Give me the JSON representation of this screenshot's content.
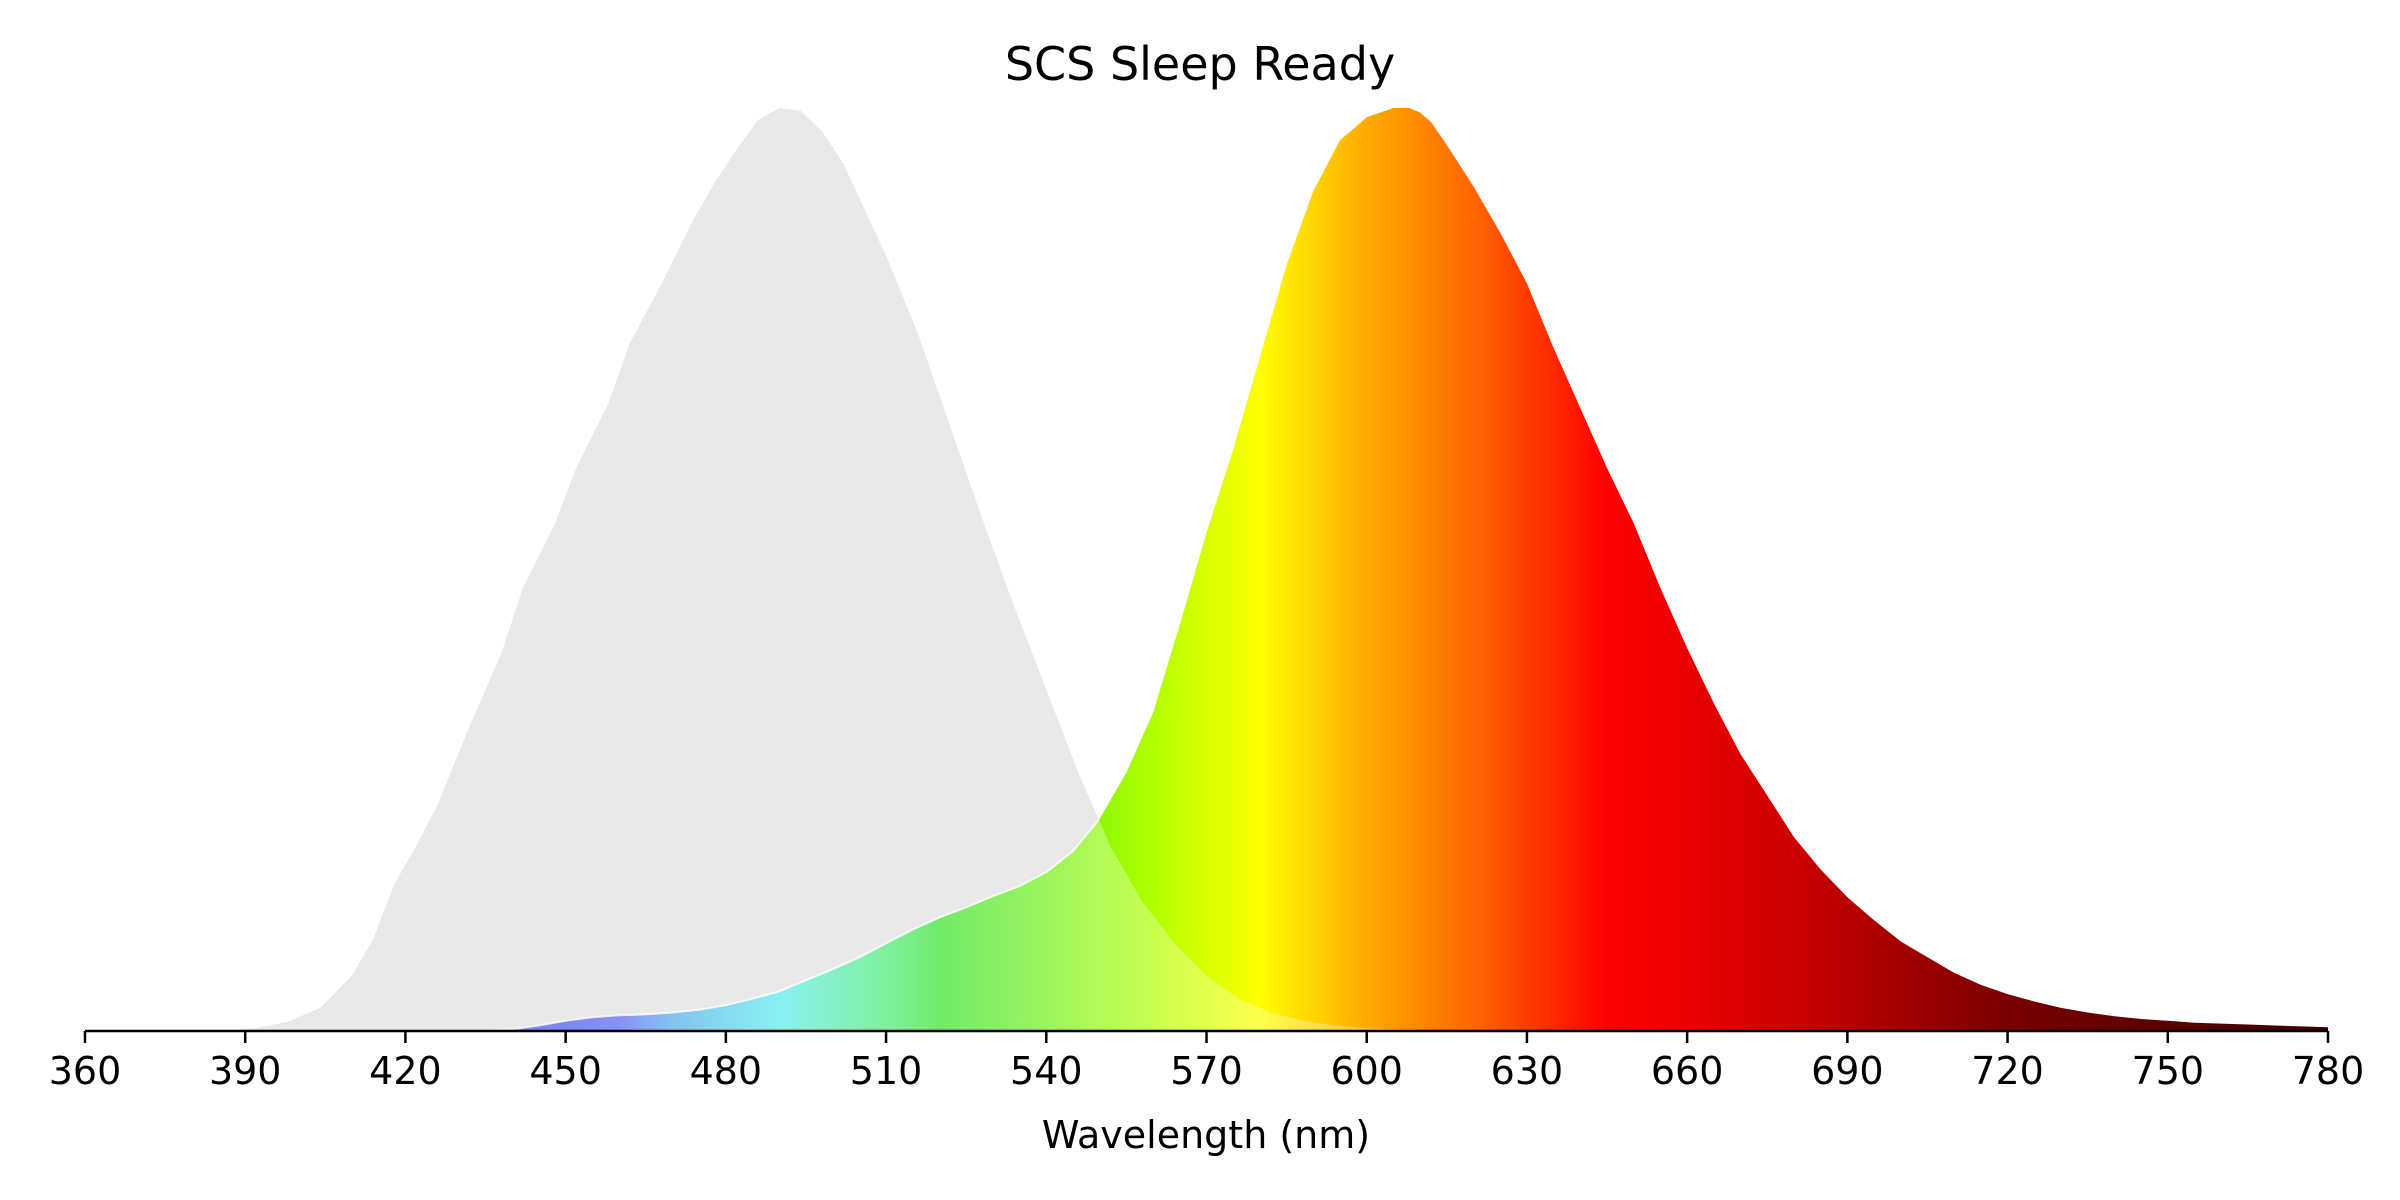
{
  "chart_data": {
    "type": "area",
    "title": "SCS Sleep Ready",
    "xlabel": "Wavelength (nm)",
    "ylabel": "",
    "xlim": [
      360,
      780
    ],
    "ylim": [
      0,
      1
    ],
    "y_axis_visible": false,
    "grid": false,
    "x_ticks": [
      360,
      390,
      420,
      450,
      480,
      510,
      540,
      570,
      600,
      630,
      660,
      690,
      720,
      750,
      780
    ],
    "series": [
      {
        "role": "reference-curve",
        "fill": "#e4e4e4",
        "x": [
          360,
          385,
          392,
          398,
          404,
          410,
          414,
          418,
          422,
          426,
          432,
          438,
          442,
          448,
          452,
          458,
          462,
          468,
          474,
          478,
          482,
          486,
          490,
          494,
          498,
          502,
          506,
          510,
          516,
          522,
          528,
          534,
          540,
          546,
          552,
          558,
          564,
          570,
          576,
          582,
          588,
          594,
          600,
          606,
          612,
          620,
          630,
          640,
          660,
          700,
          780
        ],
        "y": [
          0.0,
          0.0,
          0.003,
          0.01,
          0.025,
          0.06,
          0.1,
          0.16,
          0.2,
          0.245,
          0.33,
          0.41,
          0.48,
          0.55,
          0.61,
          0.68,
          0.745,
          0.81,
          0.88,
          0.92,
          0.955,
          0.987,
          1.0,
          0.997,
          0.975,
          0.94,
          0.89,
          0.84,
          0.755,
          0.655,
          0.555,
          0.46,
          0.37,
          0.28,
          0.2,
          0.14,
          0.095,
          0.06,
          0.035,
          0.02,
          0.011,
          0.006,
          0.003,
          0.0015,
          0.0008,
          0.0003,
          0.0001,
          0.0,
          0.0,
          0.0,
          0.0
        ]
      },
      {
        "role": "spectrum",
        "x": [
          360,
          435,
          440,
          445,
          450,
          455,
          460,
          465,
          470,
          475,
          480,
          485,
          490,
          495,
          500,
          505,
          510,
          515,
          520,
          525,
          530,
          535,
          540,
          545,
          550,
          555,
          560,
          565,
          570,
          575,
          580,
          585,
          590,
          595,
          600,
          605,
          608,
          610,
          612,
          615,
          620,
          625,
          630,
          635,
          640,
          645,
          650,
          655,
          660,
          665,
          670,
          675,
          680,
          685,
          690,
          695,
          700,
          705,
          710,
          715,
          720,
          725,
          730,
          735,
          740,
          745,
          750,
          755,
          760,
          765,
          770,
          775,
          780
        ],
        "y": [
          0.0,
          0.0,
          0.002,
          0.006,
          0.011,
          0.015,
          0.017,
          0.018,
          0.02,
          0.023,
          0.028,
          0.035,
          0.043,
          0.055,
          0.067,
          0.08,
          0.095,
          0.11,
          0.123,
          0.134,
          0.146,
          0.157,
          0.172,
          0.195,
          0.23,
          0.28,
          0.345,
          0.44,
          0.54,
          0.63,
          0.73,
          0.83,
          0.91,
          0.965,
          0.99,
          1.0,
          1.0,
          0.995,
          0.985,
          0.96,
          0.915,
          0.865,
          0.81,
          0.74,
          0.675,
          0.61,
          0.55,
          0.48,
          0.415,
          0.355,
          0.3,
          0.255,
          0.21,
          0.175,
          0.145,
          0.12,
          0.097,
          0.08,
          0.063,
          0.05,
          0.04,
          0.032,
          0.025,
          0.02,
          0.016,
          0.013,
          0.011,
          0.009,
          0.008,
          0.007,
          0.006,
          0.005,
          0.004
        ],
        "gradient": [
          {
            "wl": 380,
            "color": "#2020a0"
          },
          {
            "wl": 440,
            "color": "#1f2de0"
          },
          {
            "wl": 460,
            "color": "#3f4ef0"
          },
          {
            "wl": 470,
            "color": "#3aa0e8"
          },
          {
            "wl": 490,
            "color": "#48e8ea"
          },
          {
            "wl": 510,
            "color": "#3ee86a"
          },
          {
            "wl": 520,
            "color": "#2ae01e"
          },
          {
            "wl": 560,
            "color": "#b0ff00"
          },
          {
            "wl": 580,
            "color": "#ffff00"
          },
          {
            "wl": 600,
            "color": "#ffaa00"
          },
          {
            "wl": 620,
            "color": "#ff6600"
          },
          {
            "wl": 645,
            "color": "#ff0000"
          },
          {
            "wl": 680,
            "color": "#cc0000"
          },
          {
            "wl": 720,
            "color": "#7a0000"
          },
          {
            "wl": 780,
            "color": "#3a0000"
          }
        ]
      }
    ]
  }
}
